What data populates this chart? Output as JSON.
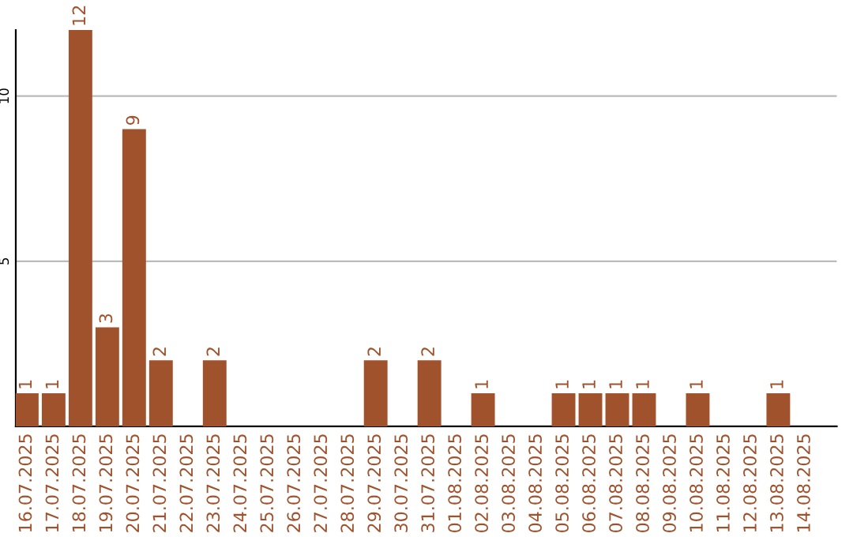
{
  "chart_data": {
    "type": "bar",
    "categories": [
      "16.07.2025",
      "17.07.2025",
      "18.07.2025",
      "19.07.2025",
      "20.07.2025",
      "21.07.2025",
      "22.07.2025",
      "23.07.2025",
      "24.07.2025",
      "25.07.2025",
      "26.07.2025",
      "27.07.2025",
      "28.07.2025",
      "29.07.2025",
      "30.07.2025",
      "31.07.2025",
      "01.08.2025",
      "02.08.2025",
      "03.08.2025",
      "04.08.2025",
      "05.08.2025",
      "06.08.2025",
      "07.08.2025",
      "08.08.2025",
      "09.08.2025",
      "10.08.2025",
      "11.08.2025",
      "12.08.2025",
      "13.08.2025",
      "14.08.2025"
    ],
    "values": [
      1,
      1,
      12,
      3,
      9,
      2,
      0,
      2,
      0,
      0,
      0,
      0,
      0,
      2,
      0,
      2,
      0,
      1,
      0,
      0,
      1,
      1,
      1,
      1,
      0,
      1,
      0,
      0,
      1,
      0
    ],
    "value_labels": [
      "1",
      "1",
      "12",
      "3",
      "9",
      "2",
      null,
      "2",
      null,
      null,
      null,
      null,
      null,
      "2",
      null,
      "2",
      null,
      "1",
      null,
      null,
      "1",
      "1",
      "1",
      "1",
      null,
      "1",
      null,
      null,
      "1",
      null
    ],
    "color": "#a0522d",
    "ylim": [
      0,
      12
    ],
    "yticks": [
      5,
      10
    ],
    "grid": "y"
  }
}
